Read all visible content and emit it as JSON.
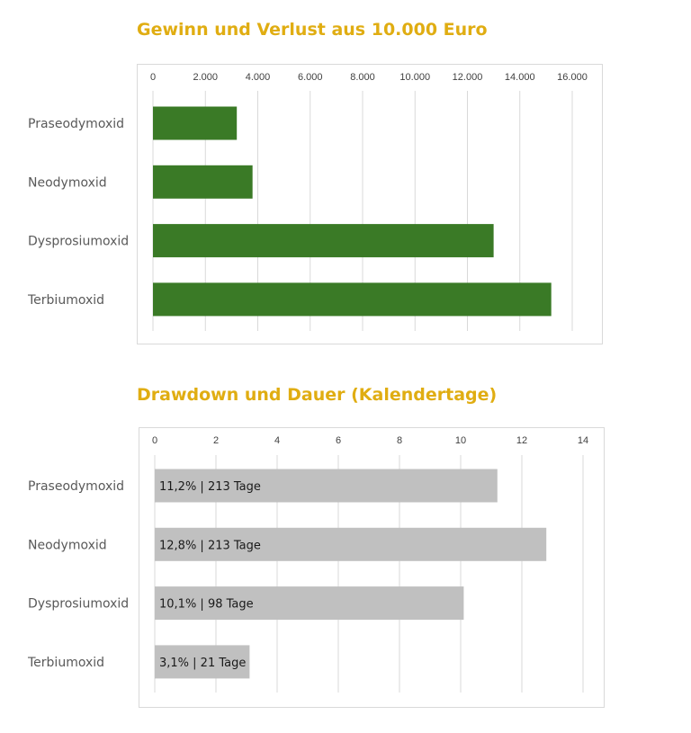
{
  "chart_data": [
    {
      "type": "bar",
      "orientation": "horizontal",
      "title": "Gewinn und Verlust aus 10.000 Euro",
      "categories": [
        "Praseodymoxid",
        "Neodymoxid",
        "Dysprosiumoxid",
        "Terbiumoxid"
      ],
      "values": [
        3200,
        3800,
        13000,
        15200
      ],
      "xlim": [
        0,
        16000
      ],
      "xticks": [
        0,
        2000,
        4000,
        6000,
        8000,
        10000,
        12000,
        14000,
        16000
      ],
      "xtick_labels": [
        "0",
        "2.000",
        "4.000",
        "6.000",
        "8.000",
        "10.000",
        "12.000",
        "14.000",
        "16.000"
      ],
      "axis_position": "top",
      "grid": true,
      "bar_color": "#3a7a26"
    },
    {
      "type": "bar",
      "orientation": "horizontal",
      "title": "Drawdown und Dauer (Kalendertage)",
      "categories": [
        "Praseodymoxid",
        "Neodymoxid",
        "Dysprosiumoxid",
        "Terbiumoxid"
      ],
      "values": [
        11.2,
        12.8,
        10.1,
        3.1
      ],
      "data_labels": [
        "11,2% | 213 Tage",
        "12,8% | 213 Tage",
        "10,1% | 98 Tage",
        "3,1% | 21 Tage"
      ],
      "xlim": [
        0,
        14
      ],
      "xticks": [
        0,
        2,
        4,
        6,
        8,
        10,
        12,
        14
      ],
      "xtick_labels": [
        "0",
        "2",
        "4",
        "6",
        "8",
        "10",
        "12",
        "14"
      ],
      "axis_position": "top",
      "grid": true,
      "bar_color": "#c0c0c0"
    }
  ]
}
